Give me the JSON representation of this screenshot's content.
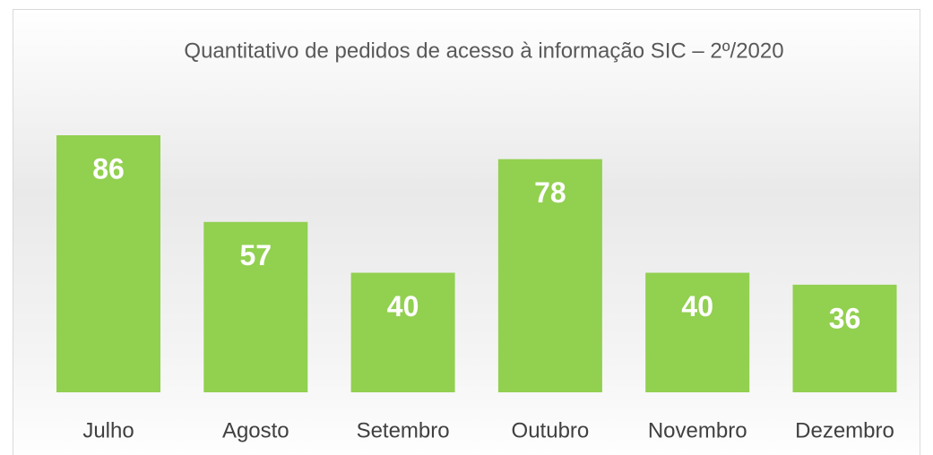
{
  "chart_data": {
    "type": "bar",
    "title": "Quantitativo de pedidos de acesso à informação SIC – 2º/2020",
    "categories": [
      "Julho",
      "Agosto",
      "Setembro",
      "Outubro",
      "Novembro",
      "Dezembro"
    ],
    "values": [
      86,
      57,
      40,
      78,
      40,
      36
    ],
    "color": "#92d050"
  }
}
